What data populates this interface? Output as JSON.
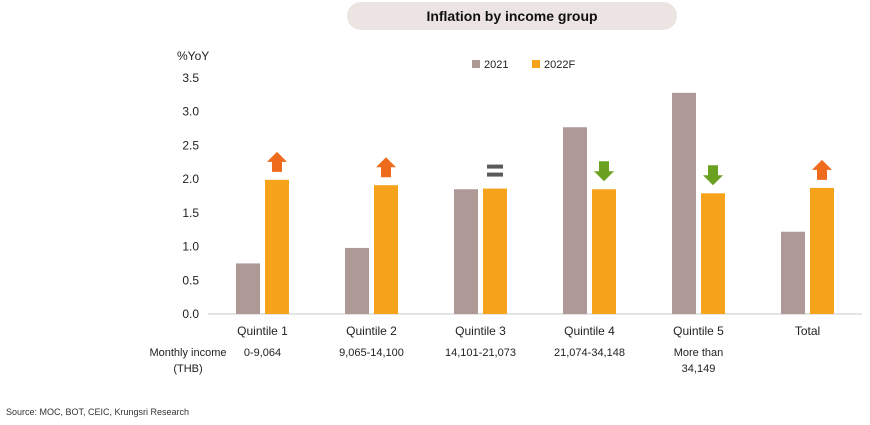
{
  "chart_data": {
    "type": "bar",
    "title": "Inflation by income group",
    "ylabel": "%YoY",
    "ylim": [
      0,
      3.5
    ],
    "yticks": [
      "0.0",
      "0.5",
      "1.0",
      "1.5",
      "2.0",
      "2.5",
      "3.0",
      "3.5"
    ],
    "categories": [
      "Quintile 1",
      "Quintile 2",
      "Quintile 3",
      "Quintile 4",
      "Quintile 5",
      "Total"
    ],
    "series": [
      {
        "name": "2021",
        "color": "#ae9997",
        "values": [
          0.75,
          0.98,
          1.85,
          2.77,
          3.28,
          1.22
        ]
      },
      {
        "name": "2022F",
        "color": "#f7a21b",
        "values": [
          1.99,
          1.91,
          1.86,
          1.85,
          1.79,
          1.87
        ]
      }
    ],
    "change_markers": [
      "up",
      "up",
      "equal",
      "down",
      "down",
      "up"
    ],
    "marker_colors": {
      "up": "#ee6a1c",
      "down": "#6aa121",
      "equal": "#5a5a5a"
    },
    "legend_position": "top-center",
    "grid": false
  },
  "income": {
    "label_line1": "Monthly income",
    "label_line2": "(THB)",
    "ranges": [
      [
        "0-9,064"
      ],
      [
        "9,065-14,100"
      ],
      [
        "14,101-21,073"
      ],
      [
        "21,074-34,148"
      ],
      [
        "More than",
        "34,149"
      ]
    ]
  },
  "source": "Source: MOC, BOT, CEIC, Krungsri Research"
}
